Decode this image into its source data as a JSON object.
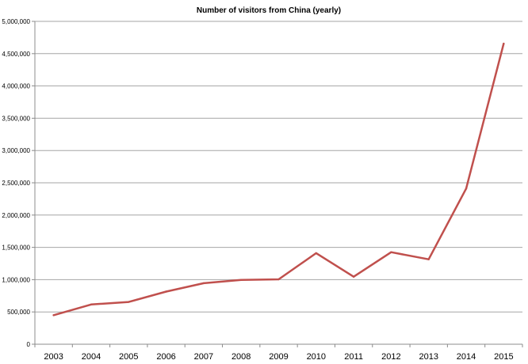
{
  "chart_data": {
    "type": "line",
    "title": "Number of visitors from China (yearly)",
    "xlabel": "",
    "ylabel": "",
    "categories": [
      "2003",
      "2004",
      "2005",
      "2006",
      "2007",
      "2008",
      "2009",
      "2010",
      "2011",
      "2012",
      "2013",
      "2014",
      "2015"
    ],
    "series": [
      {
        "values": [
          450000,
          615000,
          655000,
          815000,
          945000,
          995000,
          1005000,
          1410000,
          1045000,
          1425000,
          1315000,
          2410000,
          4655000
        ]
      }
    ],
    "ylim": [
      0,
      5000000
    ],
    "yticks": [
      0,
      500000,
      1000000,
      1500000,
      2000000,
      2500000,
      3000000,
      3500000,
      4000000,
      4500000,
      5000000
    ],
    "ytick_labels": [
      "0",
      "500,000",
      "1,000,000",
      "1,500,000",
      "2,000,000",
      "2,500,000",
      "3,000,000",
      "3,500,000",
      "4,000,000",
      "4,500,000",
      "5,000,000"
    ],
    "grid": true,
    "legend": false,
    "colors": {
      "line": "#c0504d",
      "grid": "#a6a6a6",
      "axis": "#8c8c8c"
    }
  }
}
